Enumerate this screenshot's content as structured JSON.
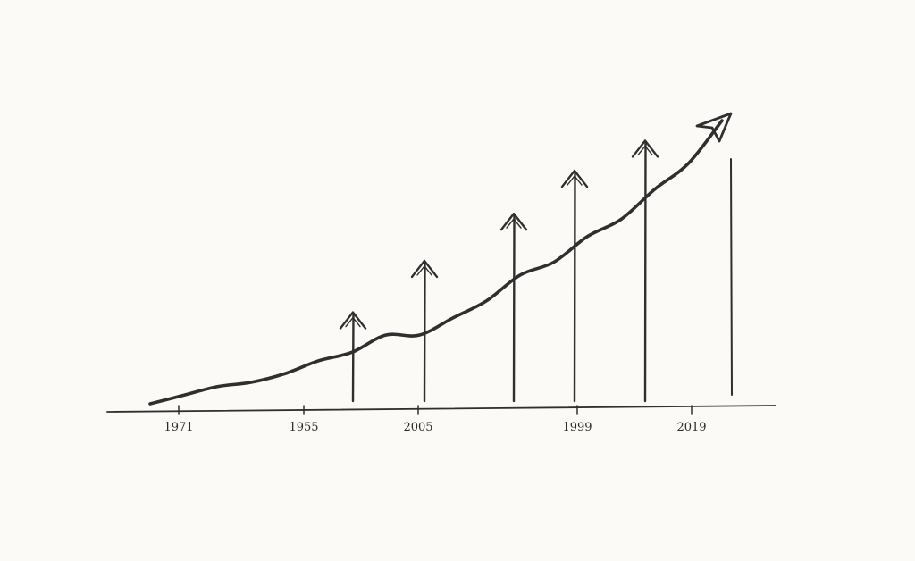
{
  "chart_data": {
    "type": "line",
    "style": "hand-drawn sketch",
    "title": "",
    "xlabel": "",
    "ylabel": "",
    "grid": false,
    "legend": "none",
    "x_tick_labels": [
      "1971",
      "1955",
      "2005",
      "1999",
      "2019"
    ],
    "series": [
      {
        "values": [
          0.0,
          0.2,
          0.4,
          0.5,
          0.7,
          1.0,
          1.2,
          1.6,
          1.6,
          2.0,
          2.4,
          3.0,
          3.3,
          3.9,
          4.3,
          5.0,
          5.6,
          6.6
        ]
      }
    ],
    "growth_arrows": [
      1.3,
      2.5,
      3.6,
      4.6,
      5.3
    ],
    "colors": {
      "ink": "#2f2f2f",
      "background": "#fbfaf6"
    }
  }
}
